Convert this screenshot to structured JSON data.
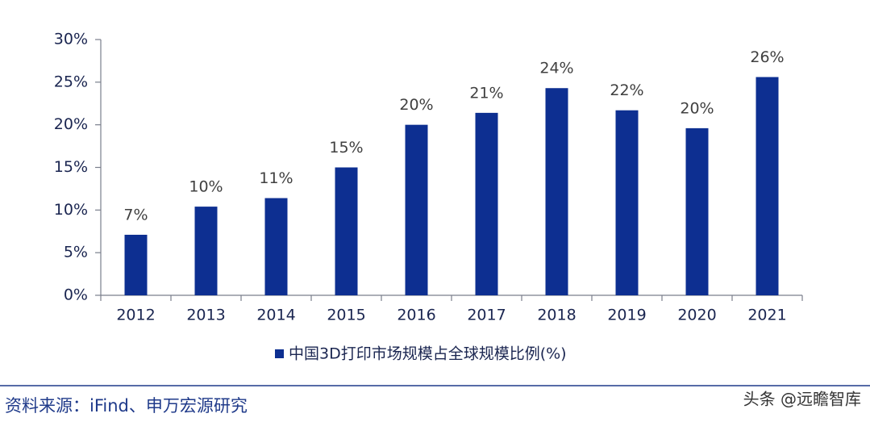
{
  "chart_data": {
    "type": "bar",
    "categories": [
      "2012",
      "2013",
      "2014",
      "2015",
      "2016",
      "2017",
      "2018",
      "2019",
      "2020",
      "2021"
    ],
    "series": [
      {
        "name": "中国3D打印市场规模占全球规模比例(%)",
        "color": "#0d2f91",
        "values": [
          7.1,
          10.4,
          11.4,
          15.0,
          20.0,
          21.4,
          24.3,
          21.7,
          19.6,
          25.6
        ],
        "value_labels": [
          "7%",
          "10%",
          "11%",
          "15%",
          "20%",
          "21%",
          "24%",
          "22%",
          "20%",
          "26%"
        ]
      }
    ],
    "ylim": [
      0,
      30
    ],
    "yticks": [
      {
        "value": 0,
        "label": "0%"
      },
      {
        "value": 5,
        "label": "5%"
      },
      {
        "value": 10,
        "label": "10%"
      },
      {
        "value": 15,
        "label": "15%"
      },
      {
        "value": 20,
        "label": "20%"
      },
      {
        "value": 25,
        "label": "25%"
      },
      {
        "value": 30,
        "label": "30%"
      }
    ],
    "grid": false,
    "legend": "bottom"
  },
  "footer": {
    "source": "资料来源：iFind、申万宏源研究",
    "watermark": "头条 @远瞻智库"
  }
}
